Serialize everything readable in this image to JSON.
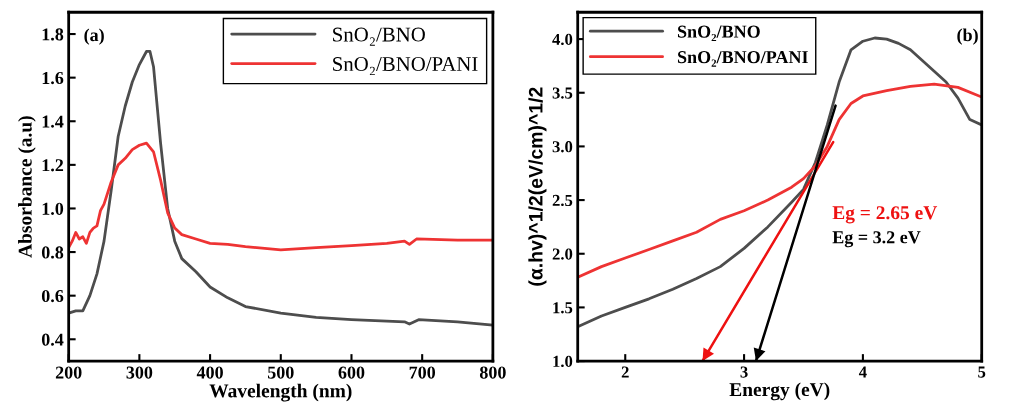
{
  "chart_data": [
    {
      "type": "line",
      "xlabel": "Wavelength (nm)",
      "ylabel": "Absorbance (a.u)",
      "xlim": [
        200,
        800
      ],
      "ylim": [
        0.3,
        1.9
      ],
      "xticks": [
        200,
        300,
        400,
        500,
        600,
        700,
        800
      ],
      "yticks": [
        0.4,
        0.6,
        0.8,
        {
          "value": 1,
          "label": "1.0"
        },
        1.2,
        1.4,
        1.6,
        1.8
      ],
      "grid": false,
      "legend": "top right",
      "annotations": [
        "(a)"
      ],
      "series": [
        {
          "name": "SnO₂/BNO",
          "color": "#4d4d4d",
          "x": [
            200,
            210,
            220,
            230,
            240,
            250,
            260,
            270,
            280,
            290,
            300,
            310,
            315,
            320,
            330,
            340,
            350,
            360,
            380,
            400,
            425,
            450,
            500,
            550,
            600,
            675,
            682,
            695,
            750,
            800
          ],
          "values": [
            0.52,
            0.53,
            0.53,
            0.6,
            0.7,
            0.85,
            1.08,
            1.33,
            1.47,
            1.58,
            1.66,
            1.72,
            1.72,
            1.65,
            1.3,
            1.0,
            0.85,
            0.77,
            0.71,
            0.64,
            0.59,
            0.55,
            0.52,
            0.5,
            0.49,
            0.48,
            0.47,
            0.49,
            0.48,
            0.465
          ]
        },
        {
          "name": "SnO₂/BNO/PANI",
          "color": "#ee3333",
          "x": [
            200,
            205,
            210,
            215,
            220,
            225,
            230,
            235,
            240,
            245,
            250,
            260,
            270,
            280,
            290,
            300,
            310,
            320,
            330,
            340,
            350,
            360,
            380,
            400,
            425,
            450,
            500,
            550,
            600,
            650,
            675,
            682,
            692,
            750,
            800
          ],
          "values": [
            0.82,
            0.85,
            0.89,
            0.86,
            0.87,
            0.84,
            0.89,
            0.91,
            0.92,
            0.99,
            1.02,
            1.12,
            1.2,
            1.23,
            1.27,
            1.29,
            1.3,
            1.26,
            1.13,
            0.98,
            0.91,
            0.88,
            0.86,
            0.84,
            0.835,
            0.825,
            0.81,
            0.82,
            0.83,
            0.84,
            0.85,
            0.835,
            0.86,
            0.855,
            0.855
          ]
        }
      ]
    },
    {
      "type": "line",
      "xlabel": "Energy (eV)",
      "ylabel": "(α.hv)^1/2(eV/cm)^1/2",
      "xlim": [
        1.6,
        5.0
      ],
      "ylim": [
        1.0,
        4.25
      ],
      "xticks": [
        2,
        3,
        4,
        5
      ],
      "yticks": [
        {
          "value": 1,
          "label": "1.0"
        },
        1.5,
        {
          "value": 2,
          "label": "2.0"
        },
        2.5,
        {
          "value": 3,
          "label": "3.0"
        },
        3.5,
        {
          "value": 4,
          "label": "4.0"
        }
      ],
      "grid": false,
      "legend": "top left",
      "annotations": [
        "(b)",
        "Eg = 2.65 eV",
        "Eg = 3.2 eV"
      ],
      "series": [
        {
          "name": "SnO₂/BNO",
          "color": "#4d4d4d",
          "x": [
            1.6,
            1.8,
            2.0,
            2.2,
            2.4,
            2.6,
            2.8,
            3.0,
            3.2,
            3.4,
            3.5,
            3.6,
            3.7,
            3.8,
            3.9,
            4.0,
            4.1,
            4.2,
            4.3,
            4.4,
            4.5,
            4.6,
            4.7,
            4.8,
            4.9,
            5.0
          ],
          "values": [
            1.32,
            1.42,
            1.5,
            1.58,
            1.67,
            1.77,
            1.88,
            2.05,
            2.25,
            2.48,
            2.6,
            2.85,
            3.2,
            3.6,
            3.9,
            3.98,
            4.01,
            4.0,
            3.96,
            3.9,
            3.8,
            3.7,
            3.6,
            3.45,
            3.25,
            3.2
          ]
        },
        {
          "name": "SnO₂/BNO/PANI",
          "color": "#ee3333",
          "x": [
            1.6,
            1.8,
            2.0,
            2.2,
            2.4,
            2.6,
            2.8,
            3.0,
            3.2,
            3.4,
            3.5,
            3.6,
            3.7,
            3.8,
            3.9,
            4.0,
            4.2,
            4.4,
            4.6,
            4.8,
            5.0
          ],
          "values": [
            1.78,
            1.88,
            1.96,
            2.04,
            2.12,
            2.2,
            2.32,
            2.4,
            2.5,
            2.62,
            2.7,
            2.82,
            3.0,
            3.25,
            3.4,
            3.47,
            3.52,
            3.56,
            3.58,
            3.55,
            3.46
          ]
        },
        {
          "type": "line",
          "color": "#ee1111",
          "x": [
            3.75,
            2.65
          ],
          "values": [
            3.04,
            1.0
          ]
        },
        {
          "type": "line",
          "color": "#000000",
          "x": [
            3.77,
            3.1
          ],
          "values": [
            3.38,
            1.0
          ]
        }
      ]
    }
  ]
}
